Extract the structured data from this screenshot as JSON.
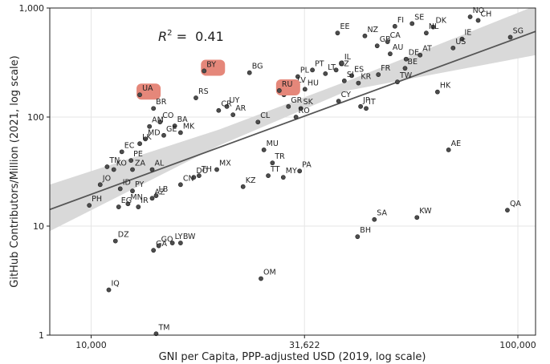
{
  "chart_data": {
    "type": "scatter",
    "title": "",
    "xlabel": "GNI per Capita, PPP-adjusted USD (2019, log scale)",
    "ylabel": "GitHub Contributors/Million (2021, log scale)",
    "x_scale": "log",
    "y_scale": "log",
    "xlim": [
      8000,
      110000
    ],
    "ylim": [
      1,
      1000
    ],
    "x_ticks": [
      {
        "value": 10000,
        "label": "10,000"
      },
      {
        "value": 31622,
        "label": "31,622"
      },
      {
        "value": 100000,
        "label": "100,000"
      }
    ],
    "y_ticks": [
      {
        "value": 1,
        "label": "1"
      },
      {
        "value": 10,
        "label": "10"
      },
      {
        "value": 100,
        "label": "100"
      },
      {
        "value": 1000,
        "label": "1,000"
      }
    ],
    "grid": true,
    "annotation": {
      "prefix": "R",
      "superscript": "2",
      "text": " =  0.41"
    },
    "regression": {
      "x": [
        8000,
        110000
      ],
      "y": [
        14.2,
        610
      ]
    },
    "confidence_band": {
      "x": [
        8000,
        20000,
        40000,
        110000
      ],
      "upper": [
        24,
        77,
        215,
        1050
      ],
      "lower": [
        9,
        55,
        175,
        370
      ]
    },
    "colors": {
      "point": "#4d4d4d",
      "highlight": "#e5877a",
      "line": "#555555",
      "band": "#d9d9d9",
      "grid": "#e6e6e6"
    },
    "highlighted": [
      "UA",
      "BY",
      "RU"
    ],
    "points": [
      {
        "label": "EE",
        "x": 37800,
        "y": 590
      },
      {
        "label": "NZ",
        "x": 43800,
        "y": 555
      },
      {
        "label": "FI",
        "x": 51500,
        "y": 680
      },
      {
        "label": "SE",
        "x": 56500,
        "y": 720
      },
      {
        "label": "NO",
        "x": 77300,
        "y": 830
      },
      {
        "label": "CH",
        "x": 80700,
        "y": 770
      },
      {
        "label": "DK",
        "x": 63300,
        "y": 670
      },
      {
        "label": "SG",
        "x": 96000,
        "y": 540
      },
      {
        "label": "GB",
        "x": 46800,
        "y": 450
      },
      {
        "label": "CA",
        "x": 49500,
        "y": 490
      },
      {
        "label": "NL",
        "x": 61000,
        "y": 590
      },
      {
        "label": "IE",
        "x": 74000,
        "y": 520
      },
      {
        "label": "US",
        "x": 70500,
        "y": 430
      },
      {
        "label": "AU",
        "x": 50200,
        "y": 380
      },
      {
        "label": "DE",
        "x": 54700,
        "y": 340
      },
      {
        "label": "AT",
        "x": 59000,
        "y": 370
      },
      {
        "label": "IL",
        "x": 38700,
        "y": 310
      },
      {
        "label": "CZ",
        "x": 37500,
        "y": 270
      },
      {
        "label": "BE",
        "x": 54400,
        "y": 280
      },
      {
        "label": "FR",
        "x": 47100,
        "y": 245
      },
      {
        "label": "TW",
        "x": 52200,
        "y": 210
      },
      {
        "label": "ES",
        "x": 40800,
        "y": 240
      },
      {
        "label": "SI",
        "x": 39200,
        "y": 215
      },
      {
        "label": "KR",
        "x": 42300,
        "y": 205
      },
      {
        "label": "LT",
        "x": 35400,
        "y": 250
      },
      {
        "label": "PT",
        "x": 33000,
        "y": 270
      },
      {
        "label": "PL",
        "x": 30500,
        "y": 235
      },
      {
        "label": "LV",
        "x": 30000,
        "y": 190
      },
      {
        "label": "HU",
        "x": 31700,
        "y": 180
      },
      {
        "label": "HK",
        "x": 64800,
        "y": 170
      },
      {
        "label": "HR",
        "x": 28300,
        "y": 160
      },
      {
        "label": "CY",
        "x": 38000,
        "y": 140
      },
      {
        "label": "JP",
        "x": 42800,
        "y": 125
      },
      {
        "label": "IT",
        "x": 44100,
        "y": 120
      },
      {
        "label": "GR",
        "x": 29000,
        "y": 125
      },
      {
        "label": "SK",
        "x": 31000,
        "y": 120
      },
      {
        "label": "RO",
        "x": 30200,
        "y": 100
      },
      {
        "label": "BG",
        "x": 23500,
        "y": 255
      },
      {
        "label": "RU",
        "x": 27600,
        "y": 175
      },
      {
        "label": "BY",
        "x": 18400,
        "y": 265
      },
      {
        "label": "UA",
        "x": 13000,
        "y": 160
      },
      {
        "label": "RS",
        "x": 17600,
        "y": 150
      },
      {
        "label": "BR",
        "x": 14000,
        "y": 120
      },
      {
        "label": "UY",
        "x": 20800,
        "y": 125
      },
      {
        "label": "CR",
        "x": 19900,
        "y": 115
      },
      {
        "label": "AR",
        "x": 21500,
        "y": 105
      },
      {
        "label": "CL",
        "x": 24600,
        "y": 90
      },
      {
        "label": "CO",
        "x": 14500,
        "y": 90
      },
      {
        "label": "AM",
        "x": 13700,
        "y": 82
      },
      {
        "label": "BA",
        "x": 15700,
        "y": 83
      },
      {
        "label": "GE",
        "x": 14800,
        "y": 68
      },
      {
        "label": "MK",
        "x": 16200,
        "y": 72
      },
      {
        "label": "MD",
        "x": 13400,
        "y": 63
      },
      {
        "label": "LK",
        "x": 13000,
        "y": 57
      },
      {
        "label": "EC",
        "x": 11800,
        "y": 48
      },
      {
        "label": "TN",
        "x": 10900,
        "y": 35
      },
      {
        "label": "KO",
        "x": 11300,
        "y": 33
      },
      {
        "label": "PE",
        "x": 12400,
        "y": 40
      },
      {
        "label": "ZA",
        "x": 12500,
        "y": 33
      },
      {
        "label": "AL",
        "x": 13900,
        "y": 33
      },
      {
        "label": "JO",
        "x": 10500,
        "y": 24
      },
      {
        "label": "ID",
        "x": 11700,
        "y": 22
      },
      {
        "label": "PY",
        "x": 12500,
        "y": 21
      },
      {
        "label": "LB",
        "x": 14200,
        "y": 19
      },
      {
        "label": "AZ",
        "x": 13900,
        "y": 18
      },
      {
        "label": "MN",
        "x": 12200,
        "y": 16
      },
      {
        "label": "EG",
        "x": 11600,
        "y": 15
      },
      {
        "label": "IR",
        "x": 12900,
        "y": 15
      },
      {
        "label": "PH",
        "x": 9900,
        "y": 15.5
      },
      {
        "label": "DO",
        "x": 17400,
        "y": 28
      },
      {
        "label": "TH",
        "x": 17900,
        "y": 29
      },
      {
        "label": "MX",
        "x": 19700,
        "y": 33
      },
      {
        "label": "CN",
        "x": 16200,
        "y": 24
      },
      {
        "label": "KZ",
        "x": 22700,
        "y": 23
      },
      {
        "label": "MU",
        "x": 25400,
        "y": 50
      },
      {
        "label": "TR",
        "x": 26600,
        "y": 38
      },
      {
        "label": "TT",
        "x": 26000,
        "y": 29
      },
      {
        "label": "MY",
        "x": 28200,
        "y": 28
      },
      {
        "label": "PA",
        "x": 30800,
        "y": 32
      },
      {
        "label": "AE",
        "x": 68800,
        "y": 50
      },
      {
        "label": "QA",
        "x": 94500,
        "y": 14
      },
      {
        "label": "SA",
        "x": 46100,
        "y": 11.5
      },
      {
        "label": "KW",
        "x": 58000,
        "y": 12
      },
      {
        "label": "BH",
        "x": 42100,
        "y": 8
      },
      {
        "label": "OM",
        "x": 25000,
        "y": 3.3
      },
      {
        "label": "DZ",
        "x": 11400,
        "y": 7.3
      },
      {
        "label": "GA",
        "x": 14000,
        "y": 6
      },
      {
        "label": "GQ",
        "x": 14400,
        "y": 6.6
      },
      {
        "label": "LY",
        "x": 15500,
        "y": 7
      },
      {
        "label": "BW",
        "x": 16200,
        "y": 7
      },
      {
        "label": "IQ",
        "x": 11000,
        "y": 2.6
      },
      {
        "label": "TM",
        "x": 14200,
        "y": 1.03
      }
    ]
  }
}
